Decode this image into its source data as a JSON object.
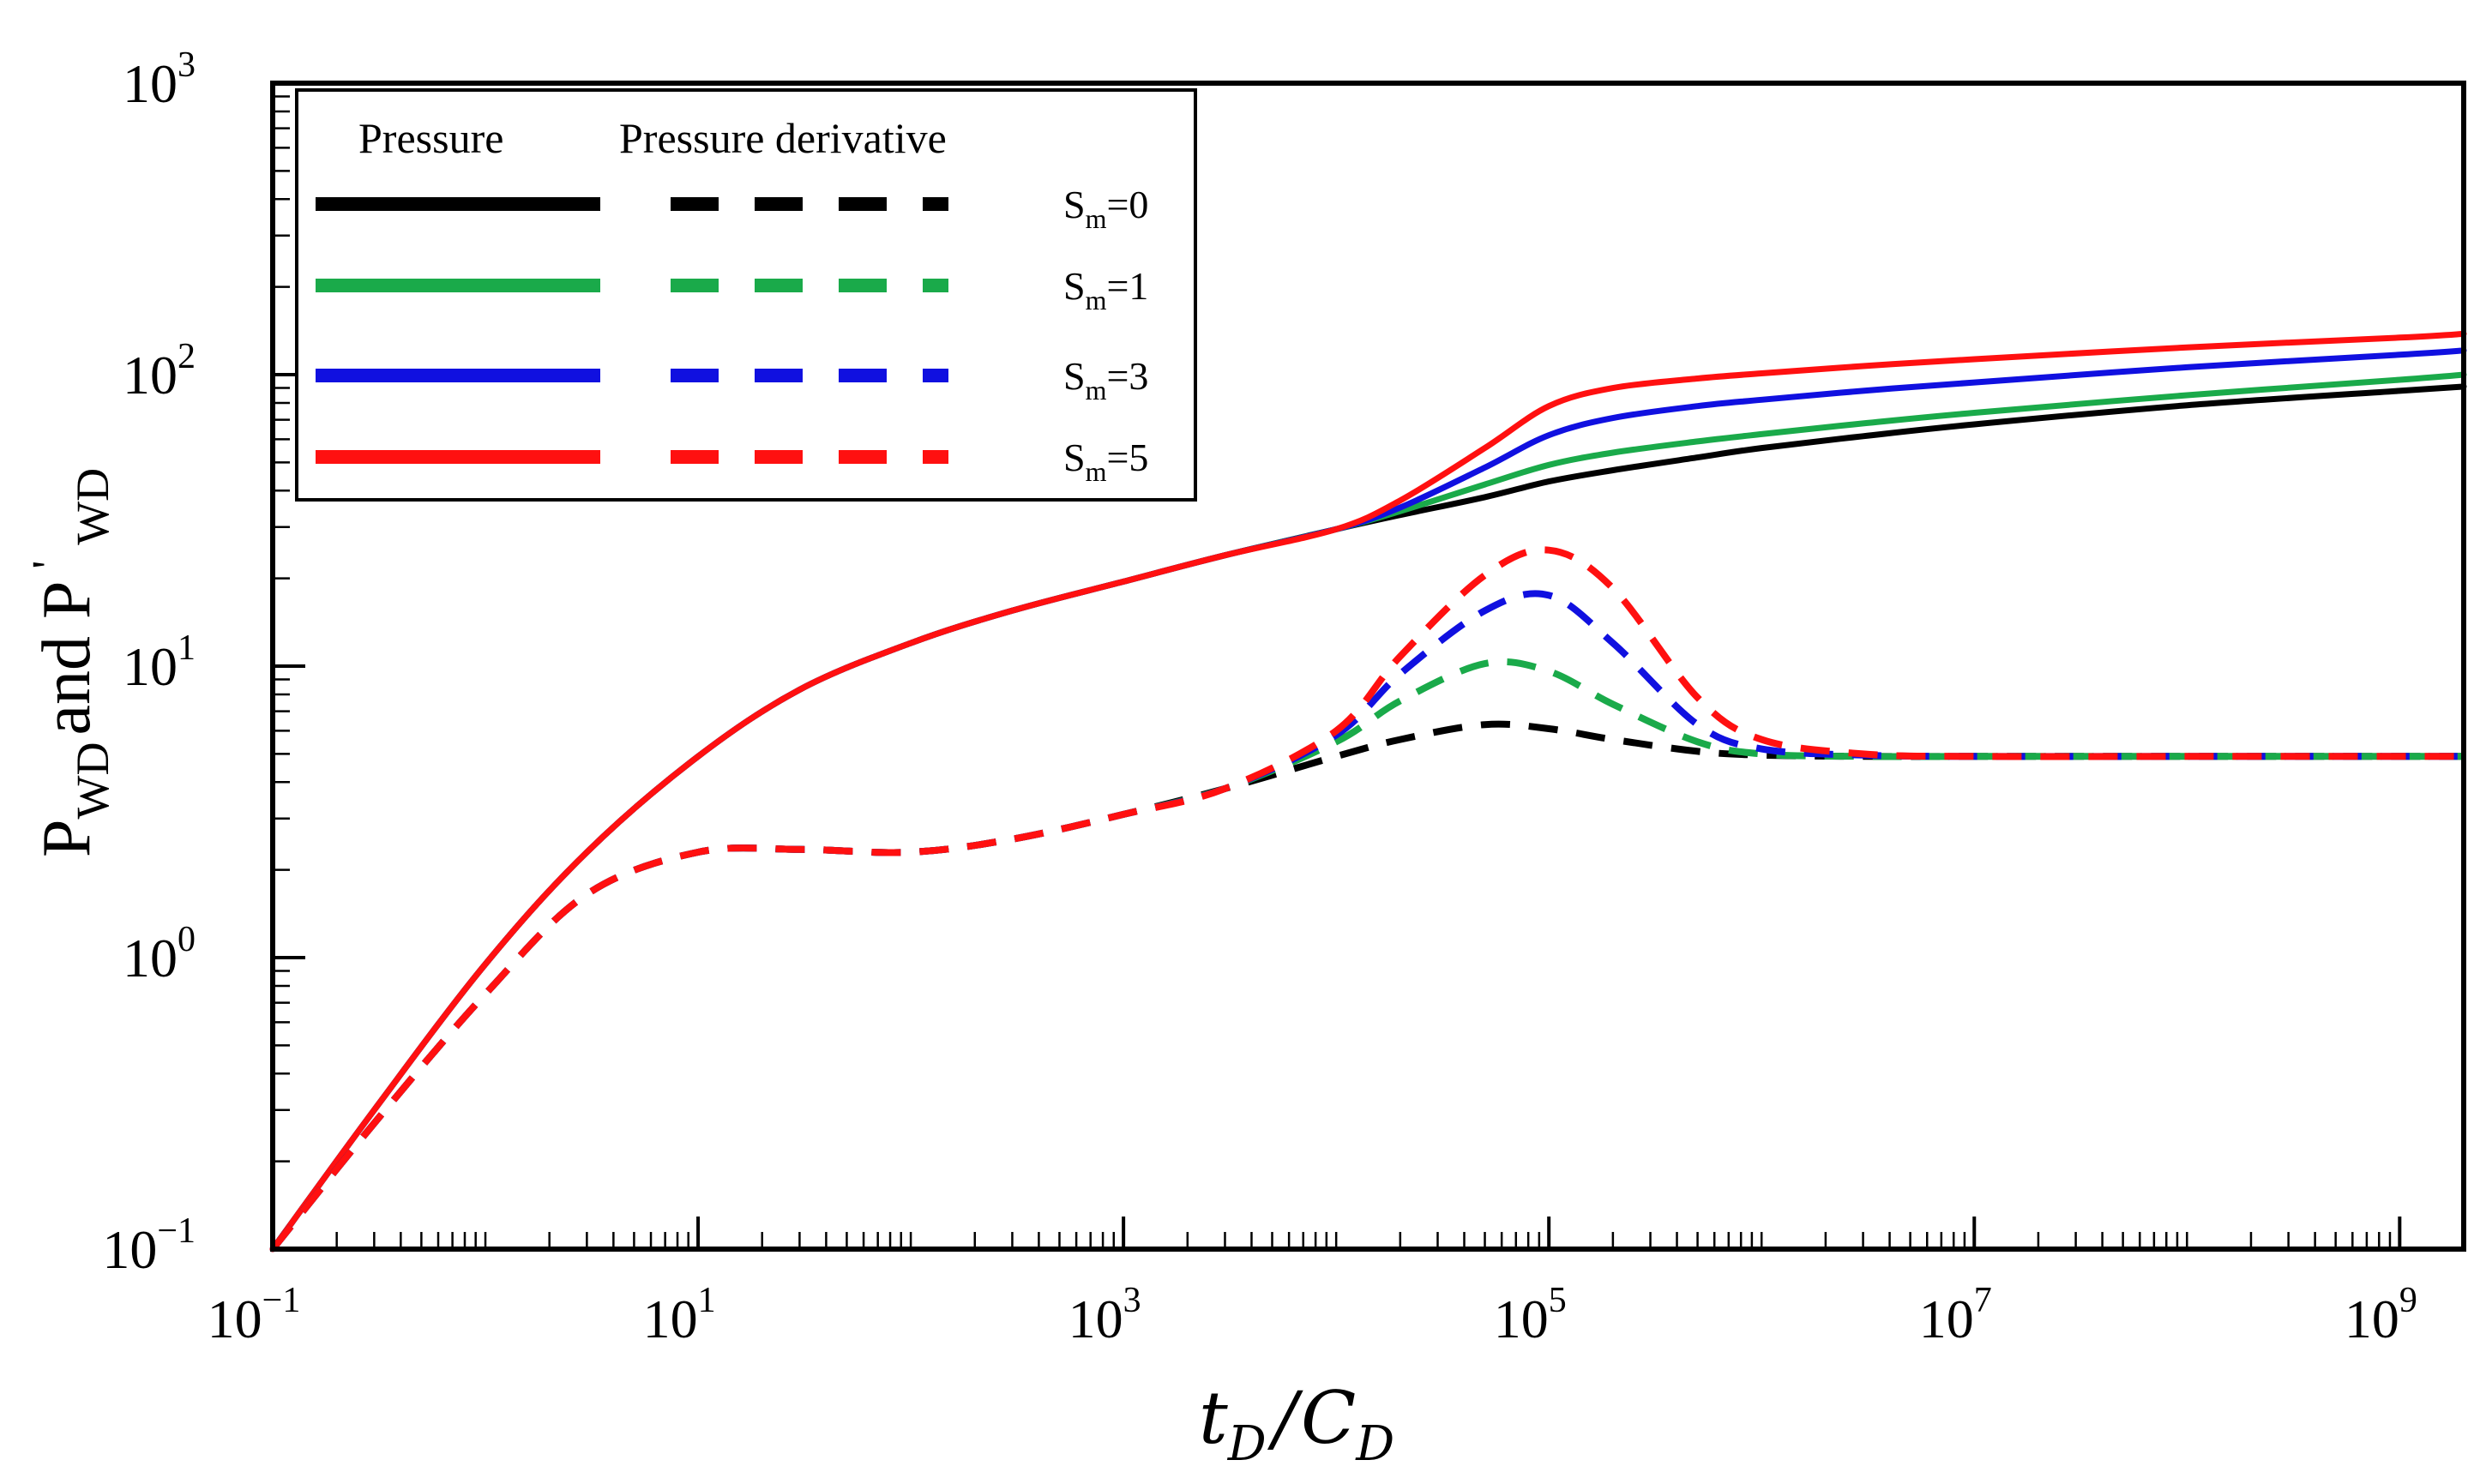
{
  "chart_data": {
    "type": "line",
    "title": "",
    "xscale": "log",
    "yscale": "log",
    "xlim": [
      0.1,
      2000000000
    ],
    "ylim": [
      0.1,
      1000
    ],
    "x_tick_labels": [
      {
        "base": "10",
        "exp": "−1",
        "value": 0.1
      },
      {
        "base": "10",
        "exp": "1",
        "value": 10
      },
      {
        "base": "10",
        "exp": "3",
        "value": 1000
      },
      {
        "base": "10",
        "exp": "5",
        "value": 100000
      },
      {
        "base": "10",
        "exp": "7",
        "value": 10000000
      },
      {
        "base": "10",
        "exp": "9",
        "value": 1000000000
      }
    ],
    "y_tick_labels": [
      {
        "base": "10",
        "exp": "−1",
        "value": 0.1
      },
      {
        "base": "10",
        "exp": "0",
        "value": 1
      },
      {
        "base": "10",
        "exp": "1",
        "value": 10
      },
      {
        "base": "10",
        "exp": "2",
        "value": 100
      },
      {
        "base": "10",
        "exp": "3",
        "value": 1000
      }
    ],
    "xlabel": {
      "t": "t",
      "t_sub": "D",
      "slash": "/",
      "c": "C",
      "c_sub": "D"
    },
    "ylabel": {
      "p1": "P",
      "sub1": "WD",
      "mid": "and P",
      "prime": "'",
      "sub2": "WD"
    },
    "legend": {
      "position": "top-left",
      "header_pressure": "Pressure",
      "header_derivative": "Pressure derivative",
      "entries": [
        {
          "base": "S",
          "sub": "m",
          "suffix": "=0",
          "color": "#000000"
        },
        {
          "base": "S",
          "sub": "m",
          "suffix": "=1",
          "color": "#1aaa4a"
        },
        {
          "base": "S",
          "sub": "m",
          "suffix": "=3",
          "color": "#1010e0"
        },
        {
          "base": "S",
          "sub": "m",
          "suffix": "=5",
          "color": "#ff1010"
        }
      ]
    },
    "x": [
      0.1,
      0.3,
      1,
      3,
      10,
      30,
      100,
      300,
      1000,
      3000,
      10000,
      20000,
      50000,
      100000,
      200000,
      500000,
      1000000,
      3000000,
      10000000,
      100000000,
      1000000000,
      2000000000
    ],
    "series": [
      {
        "name": "Pressure S=0",
        "kind": "pressure",
        "color": "#000000",
        "values": [
          0.1,
          0.3,
          0.95,
          2.3,
          4.9,
          8.3,
          12,
          15.5,
          19.5,
          24,
          29.5,
          33,
          38,
          43,
          47,
          52,
          56,
          61.5,
          67.5,
          78.5,
          88,
          91
        ]
      },
      {
        "name": "Pressure S=1",
        "kind": "pressure",
        "color": "#1aaa4a",
        "values": [
          0.1,
          0.3,
          0.95,
          2.3,
          4.9,
          8.3,
          12,
          15.5,
          19.5,
          24,
          29.5,
          34,
          42,
          49,
          54,
          59,
          62.5,
          68,
          74,
          85,
          96,
          100
        ]
      },
      {
        "name": "Pressure S=3",
        "kind": "pressure",
        "color": "#1010e0",
        "values": [
          0.1,
          0.3,
          0.95,
          2.3,
          4.9,
          8.3,
          12,
          15.5,
          19.5,
          24,
          29.5,
          35,
          48,
          62,
          71,
          78,
          82,
          88,
          94,
          106,
          117,
          121
        ]
      },
      {
        "name": "Pressure S=5",
        "kind": "pressure",
        "color": "#ff1010",
        "values": [
          0.1,
          0.3,
          0.95,
          2.3,
          4.9,
          8.3,
          12,
          15.5,
          19.5,
          24,
          29.5,
          37,
          56,
          78,
          90,
          97,
          101,
          107,
          113,
          124,
          134,
          138
        ]
      },
      {
        "name": "Derivative S=0",
        "kind": "derivative",
        "color": "#000000",
        "values": [
          0.1,
          0.27,
          0.75,
          1.65,
          2.3,
          2.35,
          2.3,
          2.55,
          3.1,
          3.8,
          4.9,
          5.6,
          6.3,
          6.1,
          5.6,
          5.1,
          4.95,
          4.9,
          4.9,
          4.9,
          4.9,
          4.9
        ]
      },
      {
        "name": "Derivative S=1",
        "kind": "derivative",
        "color": "#1aaa4a",
        "values": [
          0.1,
          0.27,
          0.75,
          1.65,
          2.3,
          2.35,
          2.3,
          2.55,
          3.1,
          3.8,
          5.5,
          7.6,
          10.2,
          9.6,
          7.4,
          5.5,
          5.0,
          4.9,
          4.9,
          4.9,
          4.9,
          4.9
        ]
      },
      {
        "name": "Derivative S=3",
        "kind": "derivative",
        "color": "#1010e0",
        "values": [
          0.1,
          0.27,
          0.75,
          1.65,
          2.3,
          2.35,
          2.3,
          2.55,
          3.1,
          3.8,
          5.8,
          9.4,
          15.5,
          17.5,
          12,
          6.3,
          5.2,
          4.95,
          4.9,
          4.9,
          4.9,
          4.9
        ]
      },
      {
        "name": "Derivative S=5",
        "kind": "derivative",
        "color": "#ff1010",
        "values": [
          0.1,
          0.27,
          0.75,
          1.65,
          2.3,
          2.35,
          2.3,
          2.55,
          3.1,
          3.8,
          6.0,
          10.8,
          20.5,
          25,
          18.5,
          7.8,
          5.6,
          5.0,
          4.9,
          4.9,
          4.9,
          4.9
        ]
      }
    ]
  }
}
